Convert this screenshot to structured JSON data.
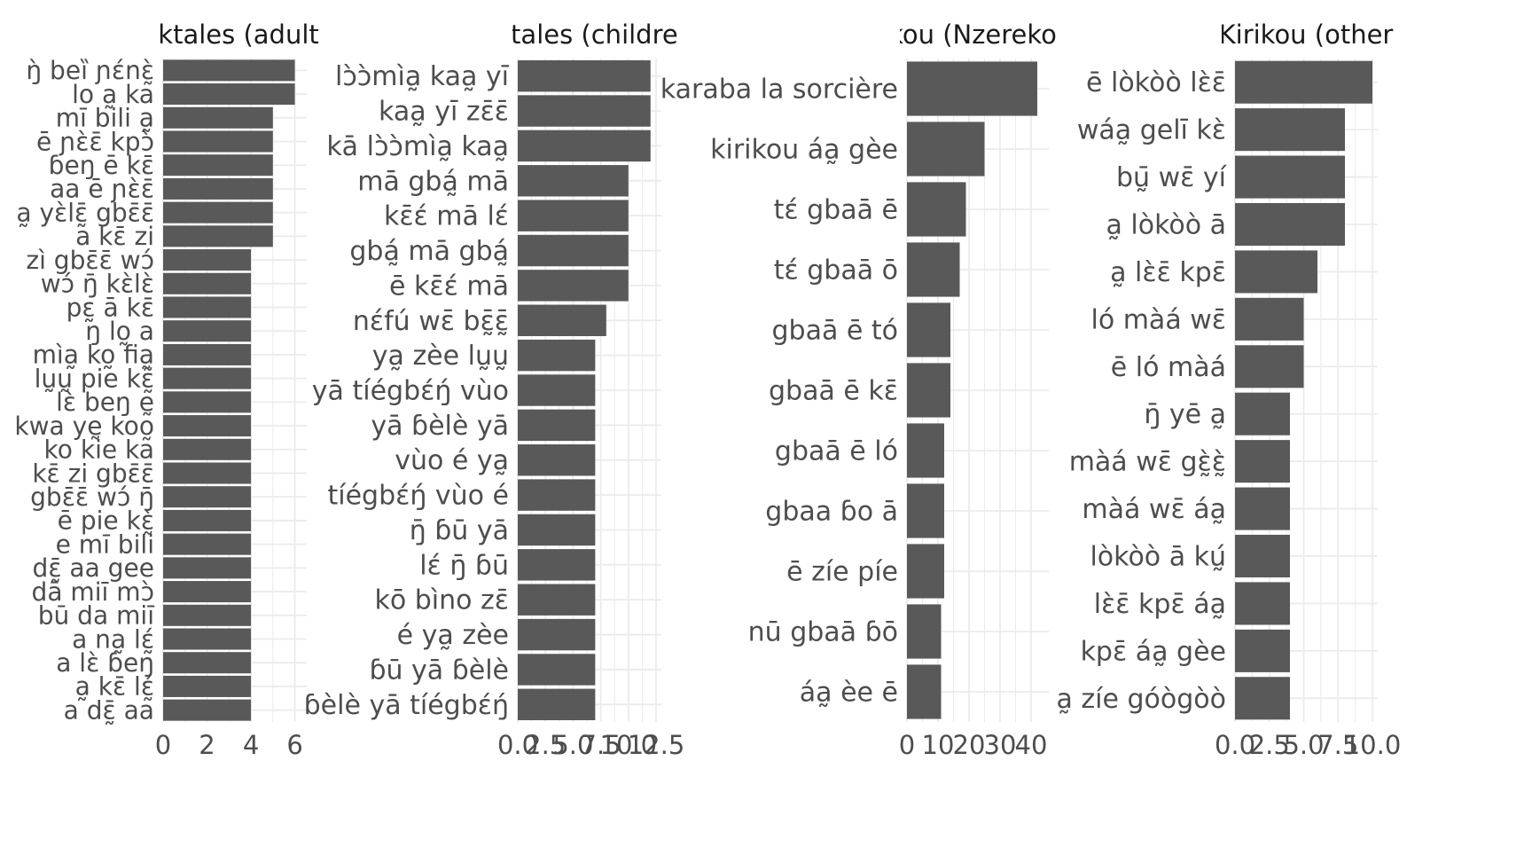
{
  "colors": {
    "bar": "#595959",
    "grid": "#ebebeb",
    "label": "#4d4d4d",
    "title": "#1a1a1a",
    "background": "#ffffff"
  },
  "chart_data": [
    {
      "type": "bar",
      "orientation": "horizontal",
      "title": "lktales (adult",
      "grid": true,
      "xlim": [
        0,
        6.3
      ],
      "xticks": [
        0,
        2,
        4,
        6
      ],
      "categories": [
        "ŋ̀ beȉ ɲɛ́nɛ̰̀",
        "lo a̰ ka",
        "mī bili a̰",
        "ē ɲɛ̀ɛ̄ kpɔ̀",
        "ɓeŋ ē kɛ̄",
        "aa ē ɲɛ̀ɛ̄",
        "a̰ yɛ̀lɛ̰̄ gbɛ̄ɛ̄",
        "a kɛ̄ zi",
        "zì gbɛ̄ɛ̄ wɔ́",
        "wɔ́ ŋ̄ kɛ̀lɛ̀",
        "pɛ̰ ā kɛ̄",
        "ŋ lo̰ a",
        "mìa̰ ko̰ fia̰",
        "lṵṵ pie kɛ̰̃",
        "lɛ̀ beŋ ḛ",
        "kwa yḛ koo̰",
        "ko kie ka",
        "kɛ̄ zi gbɛ̄ɛ̄",
        "gbɛ̄ɛ̄ wɔ́ ŋ̄",
        "ē pie kɛ̰̀",
        "e mī bili",
        "dɛ̰̄ aa gee",
        "dā miī mɔ̀",
        "bū da miī",
        "a na̰ lɛ̰́",
        "a lɛ̀ ɓeŋ",
        "a̰ kɛ̄ lɛ̰́",
        "a dɛ̰̄ aa"
      ],
      "values": [
        6,
        6,
        5,
        5,
        5,
        5,
        5,
        5,
        4,
        4,
        4,
        4,
        4,
        4,
        4,
        4,
        4,
        4,
        4,
        4,
        4,
        4,
        4,
        4,
        4,
        4,
        4,
        4
      ]
    },
    {
      "type": "bar",
      "orientation": "horizontal",
      "title": "ktales (childre",
      "grid": true,
      "xlim": [
        0,
        12.5
      ],
      "xticks": [
        0,
        2.5,
        5,
        7.5,
        10,
        12.5
      ],
      "xtick_labels": [
        "0.0",
        "2.5",
        "5.0",
        "7.5",
        "10.0",
        "12.5"
      ],
      "categories": [
        "lɔ̀ɔ̀mìa̰ kaa̰ yī",
        "kaa̰ yī zɛ̄ɛ̄",
        "kā lɔ̀ɔ̀mìa̰ kaa̰",
        "mā gbá̰ mā",
        "kɛ̄ɛ́ mā lɛ́",
        "gbá̰ mā gbá̰",
        "ē kɛ̄ɛ́ mā",
        "nɛ́fú wɛ̄ bɛ̰̄ɛ̰̄",
        "ya̰ zèe lṵṵ",
        "yā tíégbɛ́ŋ́ vùo",
        "yā ɓèlè yā",
        "vùo é ya̰",
        "tíégbɛ́ŋ́ vùo é",
        "ŋ̄ ɓū yā",
        "lɛ́ ŋ̄ ɓū",
        "kō bìno zɛ̄",
        "é ya̰ zèe",
        "ɓū yā ɓèlè",
        "ɓèlè yā tíégbɛ́ŋ́"
      ],
      "values": [
        12,
        12,
        12,
        10,
        10,
        10,
        10,
        8,
        7,
        7,
        7,
        7,
        7,
        7,
        7,
        7,
        7,
        7,
        7
      ]
    },
    {
      "type": "bar",
      "orientation": "horizontal",
      "title": "kou (Nzereko",
      "grid": true,
      "xlim": [
        0,
        44
      ],
      "xticks": [
        0,
        10,
        20,
        30,
        40
      ],
      "categories": [
        "karaba la sorcière",
        "kirikou áa̰ gèe",
        "tɛ́ gbaā ē",
        "tɛ́ gbaā ō",
        "gbaā ē tó",
        "gbaā ē kɛ̄",
        "gbaā ē ló",
        "gbaa ɓo ā",
        "ē zíe píe",
        "nū gbaā ɓō",
        "áa̰ èe ē"
      ],
      "values": [
        42,
        25,
        19,
        17,
        14,
        14,
        12,
        12,
        12,
        11,
        11
      ]
    },
    {
      "type": "bar",
      "orientation": "horizontal",
      "title": "Kirikou (other",
      "grid": true,
      "xlim": [
        0,
        10
      ],
      "xticks": [
        0,
        2.5,
        5,
        7.5,
        10
      ],
      "xtick_labels": [
        "0.0",
        "2.5",
        "5.0",
        "7.5",
        "10.0"
      ],
      "categories": [
        "ē lòkòò lɛ̀ɛ̄",
        "wáa̰ gelī kɛ̀",
        "bṵ̄ wɛ̄ yí",
        "a̰ lòkòò ā",
        "a̰ lɛ̀ɛ̄ kpɛ̄",
        "ló màá wɛ̄",
        "ē ló màá",
        "ŋ̄ yē a̰",
        "màá wɛ̄ gɛ̰̀ɛ̰̀",
        "màá wɛ̄ áa̰",
        "lòkòò ā kṵ́",
        "lɛ̀ɛ̄ kpɛ̄ áa̰",
        "kpɛ̄ áa̰ gèe",
        "a̰ zíe góògòò"
      ],
      "values": [
        10,
        8,
        8,
        8,
        6,
        5,
        5,
        4,
        4,
        4,
        4,
        4,
        4,
        4
      ]
    }
  ]
}
